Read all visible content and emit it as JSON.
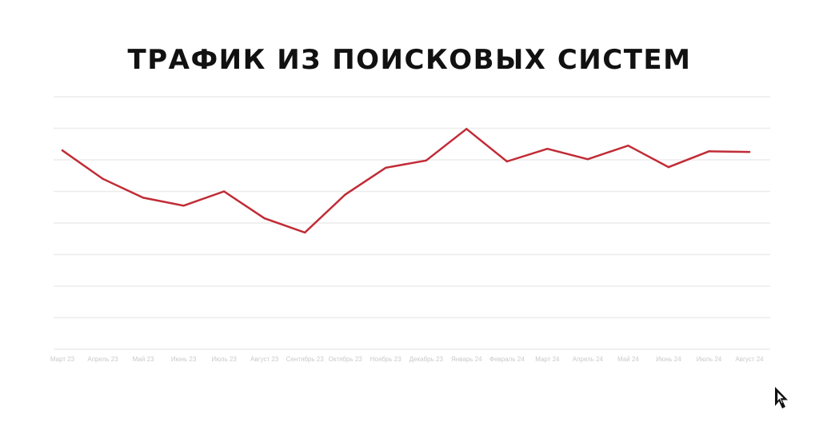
{
  "page": {
    "title": "ТРАФИК ИЗ ПОИСКОВЫХ СИСТЕМ"
  },
  "brand": {
    "logo_icon": "cursor-logo-icon"
  },
  "colors": {
    "line": "#c12c36",
    "grid": "#ececec",
    "tick_text": "#c9c9c9",
    "title": "#111111"
  },
  "chart_data": {
    "type": "line",
    "title": "ТРАФИК ИЗ ПОИСКОВЫХ СИСТЕМ",
    "xlabel": "",
    "ylabel": "",
    "grid": true,
    "y_axis_labels_visible": false,
    "ylim": [
      0,
      8
    ],
    "categories": [
      "Март 23",
      "Апрель 23",
      "Май 23",
      "Июнь 23",
      "Июль 23",
      "Август 23",
      "Сентябрь 23",
      "Октябрь 23",
      "Ноябрь 23",
      "Декабрь 23",
      "Январь 24",
      "Февраль 24",
      "Март 24",
      "Апрель 24",
      "Май 24",
      "Июнь 24",
      "Июль 24",
      "Август 24"
    ],
    "series": [
      {
        "values": [
          6.3,
          5.4,
          4.8,
          4.55,
          5.0,
          4.15,
          3.7,
          4.9,
          5.75,
          5.98,
          6.98,
          5.95,
          6.35,
          6.02,
          6.45,
          5.77,
          6.27,
          6.25
        ]
      }
    ]
  }
}
